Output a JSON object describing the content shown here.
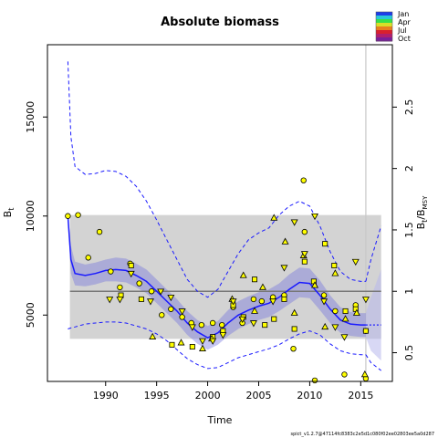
{
  "chart_data": {
    "type": "scatter",
    "title": "Absolute biomass",
    "xlabel": "Time",
    "ylabel_left": "B",
    "ylabel_left_sub": "t",
    "ylabel_right": "B",
    "ylabel_right_sub1": "t",
    "ylabel_right_mid": "/B",
    "ylabel_right_sub2": "MSY",
    "xlim": [
      1984.3,
      2018.1
    ],
    "ylim_left": [
      1650,
      18650
    ],
    "ylim_right_scale": 6200,
    "x_ticks": [
      1990,
      1995,
      2000,
      2005,
      2010,
      2015
    ],
    "y_ticks_left": [
      5000,
      10000,
      15000
    ],
    "y_ticks_right": [
      0.5,
      1,
      1.5,
      2,
      2.5
    ],
    "footer": "spict_v1.2.7@47114fc8383c2e5d1c080f02ee02803ee5a0d287",
    "legend": {
      "labels": [
        "Jan",
        "Apr",
        "Jul",
        "Oct"
      ],
      "colors": [
        "#1e3de8",
        "#2bc7d8",
        "#37e04a",
        "#d8e028",
        "#e8801e",
        "#d8202e",
        "#b01e6e",
        "#7a1e9a"
      ]
    },
    "bmsy": 6200,
    "bmsy_ci": [
      3800,
      10050
    ],
    "bmsy_band_xrange": [
      1986.5,
      2017
    ],
    "now_line_x": 2015.5,
    "fill_color": "#d3d3d3",
    "marker_color": "#ffff00",
    "series": [
      {
        "role": "estimate",
        "x": [
          1986.3,
          1986.6,
          1987,
          1988,
          1989,
          1990,
          1991,
          1992,
          1993,
          1994,
          1995,
          1996,
          1997,
          1998,
          1999,
          2000,
          2001,
          2002,
          2003,
          2004,
          2005,
          2006,
          2007,
          2008,
          2009,
          2010,
          2011,
          2012,
          2013,
          2014,
          2015,
          2015.5
        ],
        "y": [
          10000,
          7800,
          7100,
          7000,
          7100,
          7250,
          7300,
          7250,
          7000,
          6700,
          6200,
          5700,
          5200,
          4600,
          4150,
          3850,
          4100,
          4600,
          5000,
          5250,
          5450,
          5600,
          5900,
          6300,
          6650,
          6600,
          6000,
          5300,
          4750,
          4550,
          4500,
          4500
        ]
      },
      {
        "role": "upper",
        "x": [
          1986.3,
          1986.6,
          1987,
          1988,
          1989,
          1990,
          1991,
          1992,
          1993,
          1994,
          1995,
          1996,
          1997,
          1998,
          1999,
          2000,
          2001,
          2002,
          2003,
          2004,
          2005,
          2006,
          2007,
          2008,
          2009,
          2010,
          2011,
          2012,
          2013,
          2014,
          2015,
          2015.5
        ],
        "y": [
          17800,
          14000,
          12500,
          12100,
          12150,
          12300,
          12250,
          12000,
          11500,
          10750,
          9800,
          8800,
          7800,
          6800,
          6200,
          5900,
          6300,
          7200,
          8100,
          8800,
          9150,
          9400,
          10050,
          10500,
          10750,
          10500,
          9500,
          8200,
          7200,
          6800,
          6700,
          6700
        ]
      },
      {
        "role": "lower",
        "x": [
          1986.3,
          1986.6,
          1987,
          1988,
          1989,
          1990,
          1991,
          1992,
          1993,
          1994,
          1995,
          1996,
          1997,
          1998,
          1999,
          2000,
          2001,
          2002,
          2003,
          2004,
          2005,
          2006,
          2007,
          2008,
          2009,
          2010,
          2011,
          2012,
          2013,
          2014,
          2015,
          2015.5
        ],
        "y": [
          4300,
          4350,
          4400,
          4550,
          4600,
          4650,
          4650,
          4600,
          4450,
          4300,
          4050,
          3700,
          3250,
          2800,
          2500,
          2300,
          2350,
          2600,
          2850,
          3000,
          3150,
          3300,
          3500,
          3800,
          4050,
          4200,
          4000,
          3550,
          3200,
          3050,
          3000,
          3000
        ]
      },
      {
        "role": "ci",
        "x": [
          1986.3,
          1986.6,
          1987,
          1988,
          1989,
          1990,
          1991,
          1992,
          1993,
          1994,
          1995,
          1996,
          1997,
          1998,
          1999,
          2000,
          2001,
          2002,
          2003,
          2004,
          2005,
          2006,
          2007,
          2008,
          2009,
          2010,
          2011,
          2012,
          2013,
          2014,
          2015,
          2015.5
        ],
        "y_upper": [
          10200,
          8500,
          7700,
          7550,
          7650,
          7800,
          7900,
          7850,
          7600,
          7300,
          6800,
          6300,
          5800,
          5200,
          4750,
          4450,
          4700,
          5250,
          5700,
          5950,
          6150,
          6300,
          6600,
          7050,
          7400,
          7350,
          6750,
          6000,
          5400,
          5150,
          5100,
          5100
        ],
        "y_lower": [
          9800,
          7100,
          6500,
          6450,
          6550,
          6700,
          6700,
          6650,
          6400,
          6100,
          5600,
          5100,
          4600,
          4000,
          3550,
          3250,
          3500,
          3950,
          4300,
          4550,
          4750,
          4900,
          5200,
          5550,
          5900,
          5850,
          5250,
          4600,
          4100,
          3950,
          3900,
          3900
        ]
      },
      {
        "role": "forecast",
        "x": [
          2015.5,
          2016,
          2017
        ],
        "y": [
          4500,
          4500,
          4500
        ],
        "y_upper": [
          5100,
          5900,
          7300
        ],
        "y_lower": [
          3900,
          3200,
          2700
        ],
        "ci_upper": [
          6700,
          7800,
          9500
        ],
        "ci_lower": [
          3000,
          2600,
          2200
        ]
      },
      {
        "role": "index1",
        "marker": "circle",
        "x": [
          1986.3,
          1987.3,
          1988.3,
          1989.4,
          1990.5,
          1991.4,
          1992.4,
          1993.3,
          1994.5,
          1995.5,
          1996.4,
          1997.5,
          1998.4,
          1999.4,
          2000.5,
          2001.4,
          2002.5,
          2003.4,
          2004.5,
          2005.3,
          2006.4,
          2007.5,
          2008.4,
          2009.4,
          2009.5,
          2010.5,
          2011.4,
          2012.5,
          2013.4,
          2014.5,
          2015.5,
          2015.5
        ],
        "y": [
          10000,
          10050,
          7900,
          9200,
          7200,
          6400,
          7600,
          6600,
          6200,
          5000,
          5300,
          4900,
          4600,
          4500,
          4600,
          4500,
          5400,
          4600,
          5800,
          5700,
          5900,
          6000,
          3300,
          11800,
          9200,
          1700,
          6000,
          5200,
          2000,
          5500,
          4200,
          1800
        ]
      },
      {
        "role": "index2",
        "marker": "square",
        "x": [
          1991.5,
          1992.5,
          1993.5,
          1996.5,
          1998.5,
          2000.5,
          2001.5,
          2002.5,
          2003.5,
          2004.6,
          2005.6,
          2006.5,
          2007.5,
          2008.5,
          2009.5,
          2010.4,
          2011.5,
          2012.4,
          2013.5,
          2014.5,
          2015.5
        ],
        "y": [
          6000,
          7500,
          5800,
          3500,
          3400,
          3900,
          4200,
          5500,
          4900,
          6800,
          4500,
          4800,
          5800,
          4300,
          7700,
          6700,
          8600,
          7500,
          5200,
          5300,
          4200
        ]
      },
      {
        "role": "index3",
        "marker": "triangle-up",
        "x": [
          1994.6,
          1997.4,
          1999.5,
          2000.4,
          2002.4,
          2003.5,
          2004.6,
          2005.4,
          2006.5,
          2007.6,
          2008.5,
          2009.4,
          2010.5,
          2011.5,
          2012.5,
          2013.5,
          2014.6,
          2015.4
        ],
        "y": [
          3900,
          3600,
          3300,
          3800,
          5800,
          7000,
          5200,
          6400,
          9900,
          8700,
          5100,
          8000,
          6500,
          4400,
          7100,
          4800,
          5100,
          2000
        ]
      },
      {
        "role": "index4",
        "marker": "triangle-down",
        "x": [
          1990.4,
          1991.4,
          1992.5,
          1994.4,
          1995.4,
          1996.4,
          1997.5,
          1998.5,
          1999.5,
          2000.5,
          2001.5,
          2002.5,
          2003.4,
          2004.5,
          2006.4,
          2007.5,
          2008.5,
          2009.5,
          2010.5,
          2011.4,
          2012.5,
          2013.4,
          2014.5,
          2015.5
        ],
        "y": [
          5800,
          5800,
          7100,
          5700,
          6200,
          5900,
          5200,
          4400,
          3700,
          3700,
          4000,
          5700,
          4800,
          4600,
          5700,
          7400,
          9700,
          8100,
          10000,
          5700,
          4400,
          3900,
          7700,
          5800
        ]
      }
    ]
  }
}
